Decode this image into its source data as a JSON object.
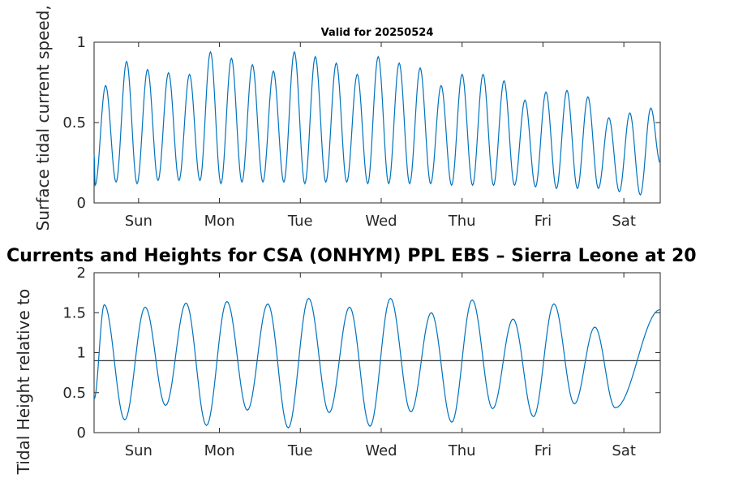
{
  "colors": {
    "series": "#0072BD",
    "reference_line": "#333333",
    "axes": "#262626"
  },
  "chart_data": [
    {
      "type": "line",
      "title": "Valid for 20250524",
      "ylabel": "Surface tidal current speed, kn",
      "xlabel": "",
      "ylim": [
        0,
        1
      ],
      "y_ticks": [
        "0",
        "0.5",
        "1"
      ],
      "x_range_days": [
        0,
        7
      ],
      "x_ticks": [
        {
          "day": 0.55,
          "label": "Sun"
        },
        {
          "day": 1.55,
          "label": "Mon"
        },
        {
          "day": 2.55,
          "label": "Tue"
        },
        {
          "day": 3.55,
          "label": "Wed"
        },
        {
          "day": 4.55,
          "label": "Thu"
        },
        {
          "day": 5.55,
          "label": "Fri"
        },
        {
          "day": 6.55,
          "label": "Sat"
        }
      ],
      "grid": false,
      "series": [
        {
          "peaks": [
            0.73,
            0.88,
            0.83,
            0.81,
            0.8,
            0.94,
            0.9,
            0.86,
            0.82,
            0.94,
            0.91,
            0.87,
            0.8,
            0.91,
            0.87,
            0.84,
            0.73,
            0.8,
            0.8,
            0.76,
            0.64,
            0.69,
            0.7,
            0.66,
            0.53,
            0.56,
            0.59
          ],
          "troughs": [
            0.11,
            0.13,
            0.12,
            0.14,
            0.14,
            0.14,
            0.12,
            0.13,
            0.13,
            0.13,
            0.12,
            0.13,
            0.13,
            0.12,
            0.12,
            0.12,
            0.12,
            0.11,
            0.11,
            0.11,
            0.11,
            0.1,
            0.09,
            0.09,
            0.09,
            0.07,
            0.05
          ]
        }
      ]
    },
    {
      "type": "line",
      "title": "Currents and Heights for CSA (ONHYM) PPL EBS  – Sierra Leone at 20",
      "ylabel": "Tidal Height relative to",
      "xlabel": "",
      "ylim": [
        0,
        2
      ],
      "y_ticks": [
        "0",
        "0.5",
        "1",
        "1.5",
        "2"
      ],
      "x_range_days": [
        0,
        7
      ],
      "x_ticks": [
        {
          "day": 0.55,
          "label": "Sun"
        },
        {
          "day": 1.55,
          "label": "Mon"
        },
        {
          "day": 2.55,
          "label": "Tue"
        },
        {
          "day": 3.55,
          "label": "Wed"
        },
        {
          "day": 4.55,
          "label": "Thu"
        },
        {
          "day": 5.55,
          "label": "Fri"
        },
        {
          "day": 6.55,
          "label": "Sat"
        }
      ],
      "grid": false,
      "reference_line": 0.9,
      "series": [
        {
          "start_value": 0.42,
          "end_value": 1.54,
          "highs": [
            1.6,
            1.57,
            1.62,
            1.64,
            1.61,
            1.68,
            1.57,
            1.68,
            1.5,
            1.66,
            1.42,
            1.61,
            1.32
          ],
          "lows": [
            0.16,
            0.34,
            0.09,
            0.28,
            0.06,
            0.25,
            0.08,
            0.26,
            0.13,
            0.3,
            0.2,
            0.36,
            0.31
          ]
        }
      ]
    }
  ]
}
